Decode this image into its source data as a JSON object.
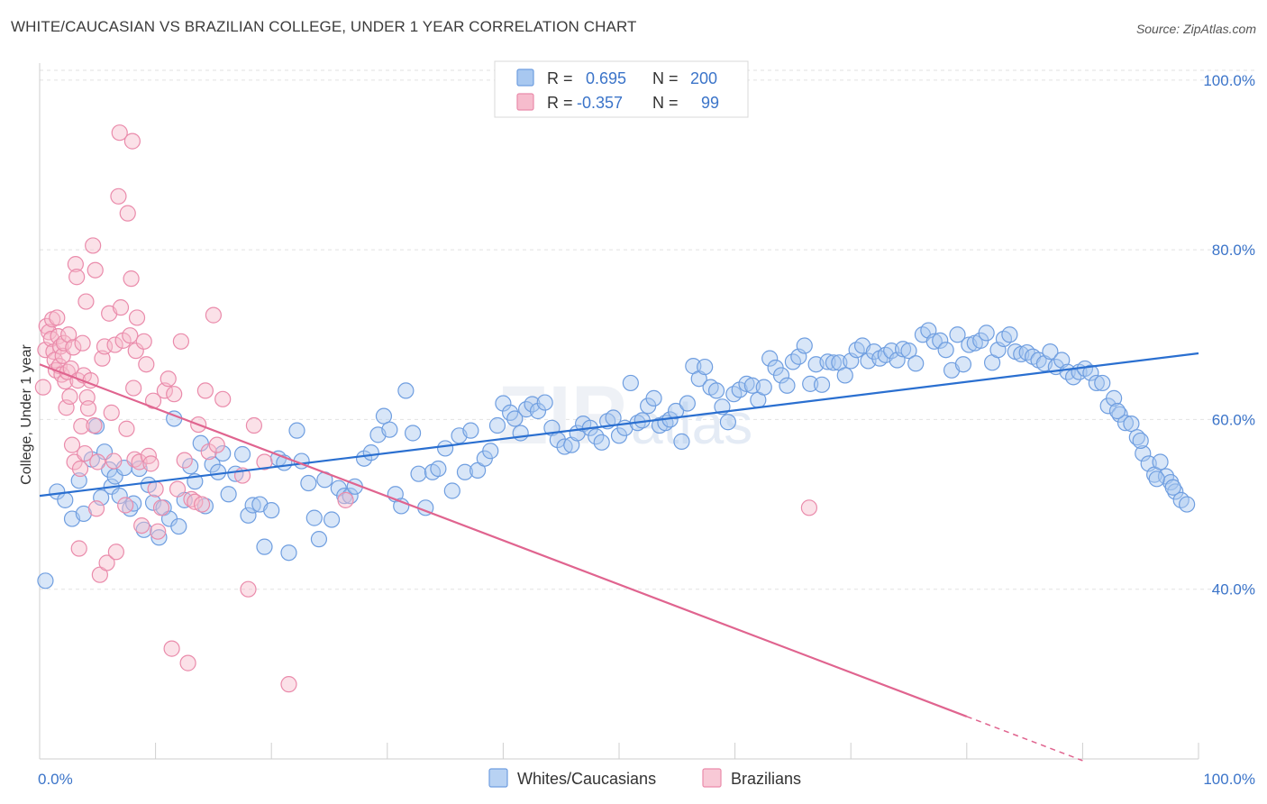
{
  "title": "WHITE/CAUCASIAN VS BRAZILIAN COLLEGE, UNDER 1 YEAR CORRELATION CHART",
  "source": "Source: ZipAtlas.com",
  "watermark": {
    "zip": "ZIP",
    "atlas": "atlas"
  },
  "legend_top": [
    {
      "r_label": "R =",
      "r_value": "0.695",
      "n_label": "N =",
      "n_value": "200",
      "color": "#a8c8f0",
      "stroke": "#6f9ee0"
    },
    {
      "r_label": "R =",
      "r_value": "-0.357",
      "n_label": "N =",
      "n_value": "99",
      "color": "#f6bccd",
      "stroke": "#ea8bab"
    }
  ],
  "legend_bottom": [
    {
      "label": "Whites/Caucasians",
      "color": "#b8d2f3",
      "stroke": "#6f9ee0"
    },
    {
      "label": "Brazilians",
      "color": "#f8c9d6",
      "stroke": "#ea8bab"
    }
  ],
  "chart_data": {
    "type": "scatter",
    "title": "WHITE/CAUCASIAN VS BRAZILIAN COLLEGE, UNDER 1 YEAR CORRELATION CHART",
    "xlabel": "",
    "ylabel": "College, Under 1 year",
    "xlim": [
      0,
      100
    ],
    "ylim": [
      20,
      102
    ],
    "x_tick_labels": [
      "0.0%",
      "100.0%"
    ],
    "y_ticks": [
      40,
      60,
      80,
      100
    ],
    "y_tick_labels": [
      "40.0%",
      "60.0%",
      "80.0%",
      "100.0%"
    ],
    "grid": true,
    "legend_position": "top-center",
    "series": [
      {
        "name": "Whites/Caucasians",
        "color": "#6f9ee0",
        "trend": {
          "x": [
            0,
            100
          ],
          "y": [
            51.0,
            67.8
          ]
        },
        "points": [
          [
            0.5,
            41.0
          ],
          [
            1.5,
            51.5
          ],
          [
            2.2,
            50.5
          ],
          [
            2.8,
            48.3
          ],
          [
            3.4,
            52.8
          ],
          [
            3.8,
            48.9
          ],
          [
            4.5,
            55.3
          ],
          [
            4.9,
            59.2
          ],
          [
            5.3,
            50.8
          ],
          [
            5.6,
            56.2
          ],
          [
            6.0,
            54.1
          ],
          [
            6.2,
            52.1
          ],
          [
            6.5,
            53.3
          ],
          [
            6.9,
            51.0
          ],
          [
            7.3,
            54.3
          ],
          [
            7.8,
            49.5
          ],
          [
            8.1,
            50.1
          ],
          [
            8.6,
            54.2
          ],
          [
            9.0,
            47.0
          ],
          [
            9.4,
            52.3
          ],
          [
            9.8,
            50.2
          ],
          [
            10.3,
            46.1
          ],
          [
            10.7,
            49.6
          ],
          [
            11.2,
            48.3
          ],
          [
            11.6,
            60.1
          ],
          [
            12.0,
            47.4
          ],
          [
            12.5,
            50.5
          ],
          [
            13.0,
            54.5
          ],
          [
            13.4,
            52.7
          ],
          [
            13.9,
            57.2
          ],
          [
            14.3,
            49.8
          ],
          [
            14.9,
            54.7
          ],
          [
            15.4,
            53.8
          ],
          [
            15.8,
            56.0
          ],
          [
            16.3,
            51.2
          ],
          [
            16.9,
            53.6
          ],
          [
            17.5,
            55.9
          ],
          [
            18.0,
            48.7
          ],
          [
            18.4,
            49.9
          ],
          [
            19.0,
            50.0
          ],
          [
            19.4,
            45.0
          ],
          [
            20.0,
            49.3
          ],
          [
            20.6,
            55.4
          ],
          [
            21.1,
            54.9
          ],
          [
            21.5,
            44.3
          ],
          [
            22.2,
            58.7
          ],
          [
            22.6,
            55.1
          ],
          [
            23.2,
            52.5
          ],
          [
            23.7,
            48.4
          ],
          [
            24.1,
            45.9
          ],
          [
            24.6,
            52.9
          ],
          [
            25.2,
            48.2
          ],
          [
            25.8,
            51.9
          ],
          [
            26.3,
            51.0
          ],
          [
            26.8,
            51.0
          ],
          [
            27.2,
            52.1
          ],
          [
            28.0,
            55.4
          ],
          [
            28.6,
            56.1
          ],
          [
            29.2,
            58.2
          ],
          [
            29.7,
            60.4
          ],
          [
            30.2,
            58.8
          ],
          [
            30.7,
            51.2
          ],
          [
            31.2,
            49.8
          ],
          [
            31.6,
            63.4
          ],
          [
            32.2,
            58.4
          ],
          [
            32.7,
            53.6
          ],
          [
            33.3,
            49.6
          ],
          [
            33.9,
            53.8
          ],
          [
            34.4,
            54.2
          ],
          [
            35.0,
            56.6
          ],
          [
            35.6,
            51.6
          ],
          [
            36.2,
            58.1
          ],
          [
            36.7,
            53.8
          ],
          [
            37.2,
            58.7
          ],
          [
            37.8,
            54.0
          ],
          [
            38.4,
            55.4
          ],
          [
            38.9,
            56.3
          ],
          [
            39.5,
            59.3
          ],
          [
            40.0,
            61.9
          ],
          [
            40.6,
            60.8
          ],
          [
            41.0,
            60.1
          ],
          [
            41.5,
            58.4
          ],
          [
            42.0,
            61.2
          ],
          [
            42.5,
            61.8
          ],
          [
            43.0,
            61.0
          ],
          [
            43.6,
            62.0
          ],
          [
            44.2,
            59.0
          ],
          [
            44.7,
            57.6
          ],
          [
            45.3,
            56.8
          ],
          [
            45.9,
            57.0
          ],
          [
            46.4,
            58.4
          ],
          [
            46.9,
            59.5
          ],
          [
            47.5,
            59.0
          ],
          [
            48.0,
            58.0
          ],
          [
            48.5,
            57.3
          ],
          [
            49.0,
            59.8
          ],
          [
            49.5,
            60.2
          ],
          [
            50.0,
            58.1
          ],
          [
            50.5,
            59.0
          ],
          [
            51.0,
            64.3
          ],
          [
            51.6,
            59.6
          ],
          [
            52.0,
            59.9
          ],
          [
            52.5,
            61.6
          ],
          [
            53.0,
            62.5
          ],
          [
            53.5,
            59.3
          ],
          [
            54.0,
            59.6
          ],
          [
            54.4,
            60.0
          ],
          [
            54.9,
            61.0
          ],
          [
            55.4,
            57.4
          ],
          [
            55.9,
            61.9
          ],
          [
            56.4,
            66.3
          ],
          [
            56.9,
            64.8
          ],
          [
            57.4,
            66.2
          ],
          [
            57.9,
            63.8
          ],
          [
            58.4,
            63.4
          ],
          [
            58.9,
            61.5
          ],
          [
            59.4,
            59.7
          ],
          [
            59.9,
            63.0
          ],
          [
            60.4,
            63.5
          ],
          [
            61.0,
            64.2
          ],
          [
            61.5,
            64.0
          ],
          [
            62.0,
            62.3
          ],
          [
            62.5,
            63.8
          ],
          [
            63.0,
            67.2
          ],
          [
            63.5,
            66.1
          ],
          [
            64.0,
            65.2
          ],
          [
            64.5,
            64.0
          ],
          [
            65.0,
            66.8
          ],
          [
            65.5,
            67.4
          ],
          [
            66.0,
            68.7
          ],
          [
            66.5,
            64.2
          ],
          [
            67.0,
            66.5
          ],
          [
            67.5,
            64.1
          ],
          [
            68.0,
            66.8
          ],
          [
            68.5,
            66.7
          ],
          [
            69.0,
            66.7
          ],
          [
            69.5,
            65.2
          ],
          [
            70.0,
            66.9
          ],
          [
            70.5,
            68.2
          ],
          [
            71.0,
            68.7
          ],
          [
            71.5,
            66.9
          ],
          [
            72.0,
            68.0
          ],
          [
            72.5,
            67.2
          ],
          [
            73.0,
            67.6
          ],
          [
            73.5,
            68.1
          ],
          [
            74.0,
            67.0
          ],
          [
            74.5,
            68.3
          ],
          [
            75.0,
            68.1
          ],
          [
            75.6,
            66.6
          ],
          [
            76.2,
            70.0
          ],
          [
            76.7,
            70.5
          ],
          [
            77.2,
            69.2
          ],
          [
            77.7,
            69.3
          ],
          [
            78.2,
            68.2
          ],
          [
            78.7,
            65.8
          ],
          [
            79.2,
            70.0
          ],
          [
            79.7,
            66.5
          ],
          [
            80.2,
            68.8
          ],
          [
            80.7,
            69.0
          ],
          [
            81.2,
            69.3
          ],
          [
            81.7,
            70.2
          ],
          [
            82.2,
            66.7
          ],
          [
            82.7,
            68.2
          ],
          [
            83.2,
            69.5
          ],
          [
            83.7,
            70.0
          ],
          [
            84.2,
            68.0
          ],
          [
            84.7,
            67.7
          ],
          [
            85.2,
            67.9
          ],
          [
            85.7,
            67.4
          ],
          [
            86.2,
            67.0
          ],
          [
            86.7,
            66.6
          ],
          [
            87.2,
            68.0
          ],
          [
            87.7,
            66.2
          ],
          [
            88.2,
            67.0
          ],
          [
            88.7,
            65.6
          ],
          [
            89.2,
            65.0
          ],
          [
            89.7,
            65.6
          ],
          [
            90.2,
            66.0
          ],
          [
            90.7,
            65.5
          ],
          [
            91.2,
            64.3
          ],
          [
            91.7,
            64.3
          ],
          [
            92.2,
            61.6
          ],
          [
            92.7,
            62.5
          ],
          [
            93.2,
            60.6
          ],
          [
            93.7,
            59.6
          ],
          [
            94.2,
            59.5
          ],
          [
            94.7,
            57.9
          ],
          [
            95.2,
            56.0
          ],
          [
            95.7,
            54.8
          ],
          [
            96.2,
            53.5
          ],
          [
            96.7,
            55.0
          ],
          [
            97.2,
            53.3
          ],
          [
            97.6,
            52.6
          ],
          [
            98.0,
            51.5
          ],
          [
            98.5,
            50.5
          ],
          [
            99.0,
            50.0
          ],
          [
            97.8,
            52.0
          ],
          [
            96.4,
            53.0
          ],
          [
            95.0,
            57.5
          ],
          [
            93.0,
            61.0
          ]
        ]
      },
      {
        "name": "Brazilians",
        "color": "#ea8bab",
        "trend": {
          "x": [
            0,
            80
          ],
          "y": [
            66.5,
            25.0
          ],
          "dashed_to": {
            "x": 90,
            "y": 19.8
          }
        },
        "points": [
          [
            0.3,
            63.8
          ],
          [
            0.5,
            68.2
          ],
          [
            0.6,
            71.0
          ],
          [
            0.8,
            70.3
          ],
          [
            1.0,
            69.5
          ],
          [
            1.1,
            71.8
          ],
          [
            1.2,
            68.0
          ],
          [
            1.3,
            67.0
          ],
          [
            1.4,
            65.8
          ],
          [
            1.5,
            72.0
          ],
          [
            1.6,
            69.8
          ],
          [
            1.7,
            66.3
          ],
          [
            1.8,
            68.6
          ],
          [
            1.9,
            65.3
          ],
          [
            2.0,
            67.5
          ],
          [
            2.1,
            69.0
          ],
          [
            2.2,
            64.5
          ],
          [
            2.3,
            61.4
          ],
          [
            2.4,
            65.6
          ],
          [
            2.5,
            70.0
          ],
          [
            2.6,
            62.7
          ],
          [
            2.7,
            66.0
          ],
          [
            2.8,
            57.0
          ],
          [
            2.9,
            68.5
          ],
          [
            3.0,
            55.0
          ],
          [
            3.1,
            78.3
          ],
          [
            3.2,
            76.8
          ],
          [
            3.3,
            64.6
          ],
          [
            3.4,
            44.8
          ],
          [
            3.5,
            54.2
          ],
          [
            3.6,
            59.2
          ],
          [
            3.7,
            69.0
          ],
          [
            3.8,
            65.2
          ],
          [
            3.9,
            56.0
          ],
          [
            4.0,
            73.9
          ],
          [
            4.1,
            62.6
          ],
          [
            4.2,
            61.3
          ],
          [
            4.4,
            64.6
          ],
          [
            4.6,
            80.5
          ],
          [
            4.7,
            59.3
          ],
          [
            4.8,
            77.6
          ],
          [
            4.9,
            49.5
          ],
          [
            5.0,
            55.0
          ],
          [
            5.2,
            41.7
          ],
          [
            5.4,
            67.2
          ],
          [
            5.6,
            68.6
          ],
          [
            5.8,
            43.1
          ],
          [
            6.0,
            72.5
          ],
          [
            6.2,
            60.8
          ],
          [
            6.4,
            55.1
          ],
          [
            6.5,
            68.8
          ],
          [
            6.6,
            44.4
          ],
          [
            6.8,
            86.3
          ],
          [
            6.9,
            93.8
          ],
          [
            7.0,
            73.2
          ],
          [
            7.2,
            69.3
          ],
          [
            7.4,
            49.9
          ],
          [
            7.5,
            58.9
          ],
          [
            7.6,
            84.3
          ],
          [
            7.8,
            69.9
          ],
          [
            7.9,
            76.6
          ],
          [
            8.0,
            92.8
          ],
          [
            8.1,
            63.7
          ],
          [
            8.2,
            55.3
          ],
          [
            8.3,
            68.1
          ],
          [
            8.4,
            72.0
          ],
          [
            8.6,
            55.0
          ],
          [
            8.8,
            47.5
          ],
          [
            9.0,
            69.2
          ],
          [
            9.2,
            66.5
          ],
          [
            9.4,
            55.7
          ],
          [
            9.6,
            54.8
          ],
          [
            9.8,
            62.2
          ],
          [
            10.0,
            51.8
          ],
          [
            10.2,
            46.8
          ],
          [
            10.5,
            49.6
          ],
          [
            10.8,
            63.4
          ],
          [
            11.1,
            64.8
          ],
          [
            11.4,
            33.0
          ],
          [
            11.6,
            63.0
          ],
          [
            11.9,
            51.8
          ],
          [
            12.2,
            69.2
          ],
          [
            12.5,
            55.2
          ],
          [
            12.8,
            31.3
          ],
          [
            13.1,
            50.6
          ],
          [
            13.4,
            50.3
          ],
          [
            13.7,
            59.4
          ],
          [
            14.0,
            50.0
          ],
          [
            14.3,
            63.4
          ],
          [
            14.6,
            56.2
          ],
          [
            15.0,
            72.3
          ],
          [
            15.3,
            57.0
          ],
          [
            15.8,
            62.4
          ],
          [
            17.5,
            53.4
          ],
          [
            18.0,
            40.0
          ],
          [
            18.5,
            59.3
          ],
          [
            19.4,
            55.0
          ],
          [
            21.5,
            28.8
          ],
          [
            26.4,
            50.5
          ],
          [
            66.4,
            49.6
          ]
        ]
      }
    ]
  }
}
